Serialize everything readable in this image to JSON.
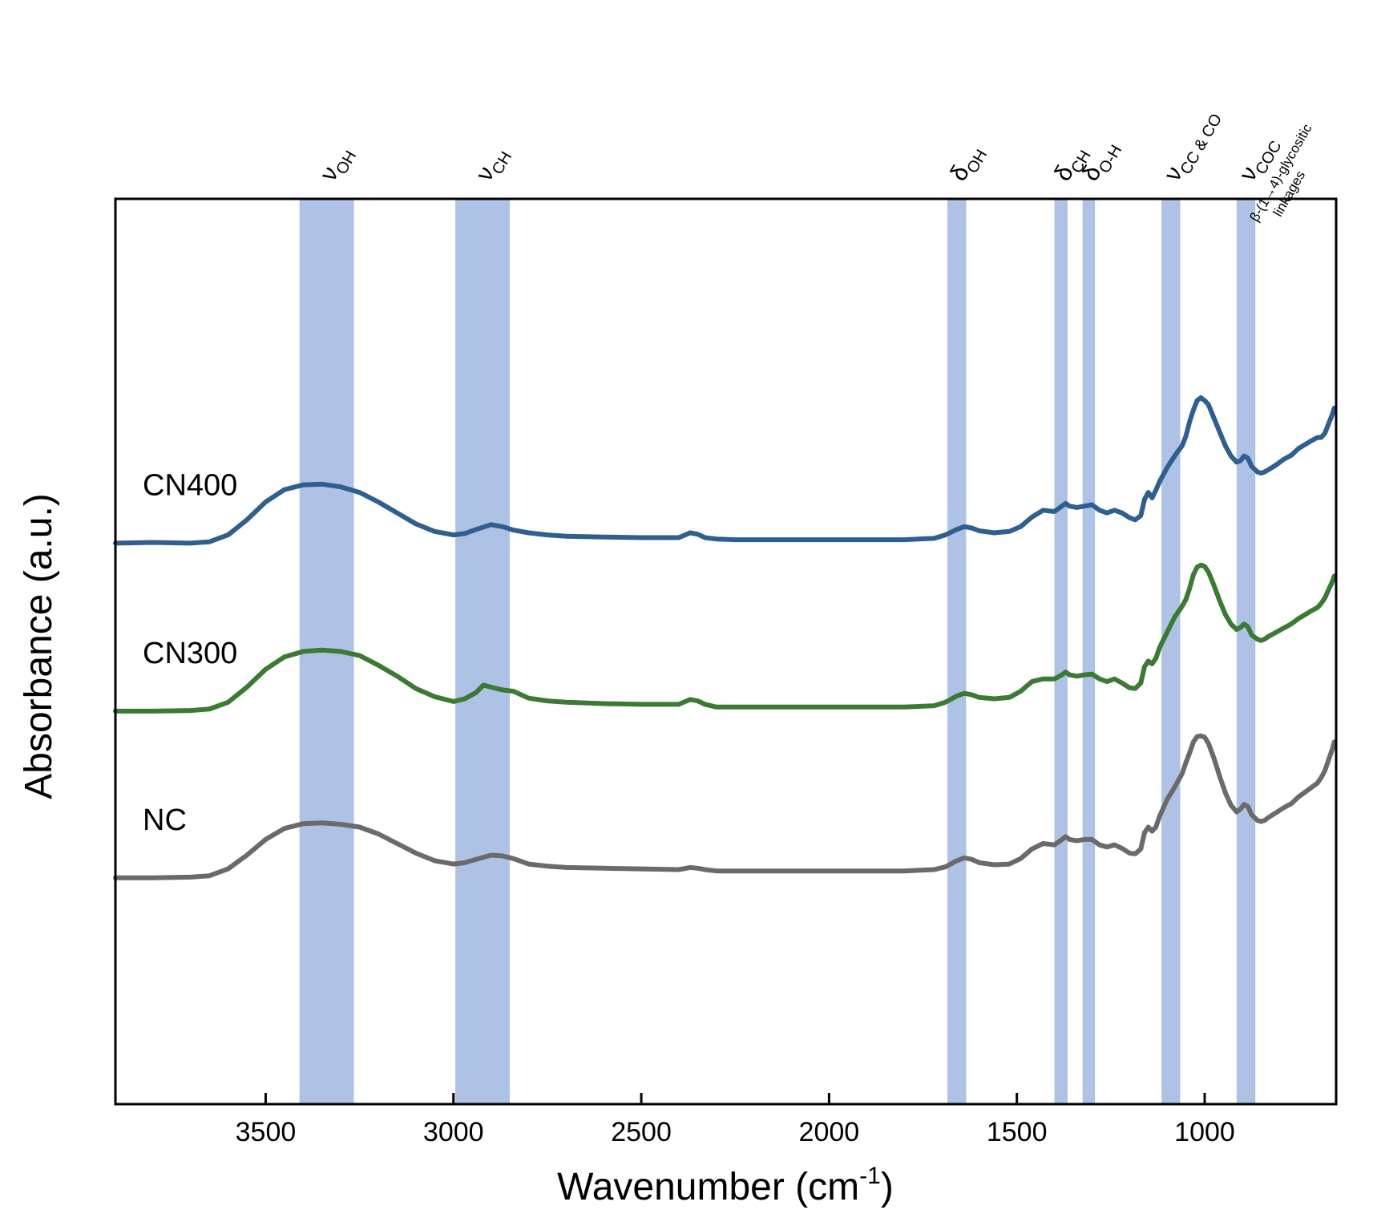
{
  "chart_data": {
    "type": "line",
    "title": "",
    "xlabel": "Wavenumber (cm",
    "xlabel_sup": "-1",
    "xlabel_close": ")",
    "ylabel": "Absorbance (a.u.)",
    "xlim": [
      3900,
      650
    ],
    "ylim": [
      -1.0,
      12.2
    ],
    "x_reversed": true,
    "xticks": [
      3500,
      3000,
      2500,
      2000,
      1500,
      1000
    ],
    "xtick_labels": [
      "3500",
      "3000",
      "2500",
      "2000",
      "1500",
      "1000"
    ],
    "grid": false,
    "legend": "inline-left",
    "bands": [
      {
        "id": "oh-stretch",
        "from": 3410,
        "to": 3265,
        "sym": "ν",
        "sub": "OH",
        "color": "#aec2e6"
      },
      {
        "id": "ch-stretch",
        "from": 2995,
        "to": 2850,
        "sym": "ν",
        "sub": "CH",
        "color": "#aec2e6"
      },
      {
        "id": "oh-bend",
        "from": 1685,
        "to": 1635,
        "sym": "δ",
        "sub": "OH",
        "color": "#aec2e6"
      },
      {
        "id": "ch-bend",
        "from": 1400,
        "to": 1365,
        "sym": "δ",
        "sub": "CH",
        "color": "#aec2e6"
      },
      {
        "id": "oh-bend-2",
        "from": 1325,
        "to": 1292,
        "sym": "δ",
        "sub": "O-H",
        "color": "#aec2e6"
      },
      {
        "id": "cc-co-stretch",
        "from": 1115,
        "to": 1065,
        "sym": "ν",
        "sub": "CC & CO",
        "color": "#aec2e6"
      },
      {
        "id": "coc-stretch",
        "from": 915,
        "to": 865,
        "sym": "ν",
        "sub": "COC",
        "extra1": "β-(1→4)-glycositic",
        "extra2": "linkages",
        "color": "#aec2e6"
      }
    ],
    "series": [
      {
        "name": "CN400",
        "color": "#2f5f8f",
        "x": [
          3900,
          3800,
          3700,
          3650,
          3600,
          3550,
          3500,
          3450,
          3400,
          3350,
          3300,
          3250,
          3200,
          3150,
          3100,
          3050,
          3000,
          2970,
          2940,
          2900,
          2870,
          2840,
          2800,
          2750,
          2700,
          2600,
          2500,
          2400,
          2370,
          2350,
          2330,
          2300,
          2250,
          2200,
          2100,
          2000,
          1900,
          1800,
          1720,
          1690,
          1660,
          1640,
          1620,
          1600,
          1560,
          1520,
          1490,
          1460,
          1430,
          1400,
          1380,
          1370,
          1360,
          1340,
          1320,
          1300,
          1280,
          1260,
          1240,
          1220,
          1200,
          1185,
          1170,
          1160,
          1150,
          1140,
          1130,
          1120,
          1100,
          1080,
          1060,
          1050,
          1040,
          1030,
          1020,
          1010,
          1000,
          990,
          975,
          960,
          945,
          930,
          915,
          905,
          895,
          885,
          875,
          860,
          850,
          840,
          830,
          810,
          790,
          770,
          750,
          720,
          700,
          690,
          680,
          670,
          660,
          655
        ],
        "y": [
          7.18,
          7.19,
          7.18,
          7.2,
          7.3,
          7.52,
          7.78,
          7.96,
          8.03,
          8.04,
          8.0,
          7.92,
          7.78,
          7.62,
          7.46,
          7.35,
          7.3,
          7.32,
          7.38,
          7.45,
          7.42,
          7.37,
          7.33,
          7.3,
          7.28,
          7.27,
          7.26,
          7.26,
          7.33,
          7.31,
          7.26,
          7.24,
          7.23,
          7.23,
          7.23,
          7.23,
          7.23,
          7.23,
          7.25,
          7.3,
          7.38,
          7.42,
          7.4,
          7.36,
          7.33,
          7.35,
          7.42,
          7.56,
          7.66,
          7.64,
          7.72,
          7.76,
          7.72,
          7.7,
          7.72,
          7.74,
          7.66,
          7.62,
          7.66,
          7.62,
          7.55,
          7.52,
          7.58,
          7.82,
          7.92,
          7.84,
          7.95,
          8.08,
          8.28,
          8.45,
          8.6,
          8.74,
          8.95,
          9.12,
          9.26,
          9.3,
          9.26,
          9.2,
          9.0,
          8.8,
          8.6,
          8.45,
          8.36,
          8.38,
          8.45,
          8.42,
          8.3,
          8.22,
          8.2,
          8.22,
          8.25,
          8.32,
          8.4,
          8.46,
          8.56,
          8.66,
          8.72,
          8.72,
          8.78,
          8.92,
          9.06,
          9.15
        ]
      },
      {
        "name": "CN300",
        "color": "#3b7a33",
        "x": [
          3900,
          3800,
          3700,
          3650,
          3600,
          3550,
          3500,
          3450,
          3400,
          3350,
          3300,
          3250,
          3200,
          3150,
          3100,
          3050,
          3000,
          2970,
          2940,
          2920,
          2900,
          2870,
          2840,
          2800,
          2750,
          2700,
          2600,
          2500,
          2400,
          2370,
          2350,
          2330,
          2300,
          2250,
          2200,
          2100,
          2000,
          1900,
          1800,
          1720,
          1690,
          1660,
          1640,
          1620,
          1600,
          1560,
          1520,
          1490,
          1460,
          1430,
          1400,
          1380,
          1370,
          1360,
          1340,
          1320,
          1300,
          1280,
          1260,
          1240,
          1220,
          1200,
          1185,
          1170,
          1160,
          1150,
          1140,
          1130,
          1120,
          1100,
          1080,
          1060,
          1050,
          1040,
          1030,
          1020,
          1010,
          1000,
          990,
          975,
          960,
          945,
          930,
          915,
          905,
          895,
          885,
          875,
          860,
          850,
          840,
          830,
          810,
          790,
          770,
          750,
          720,
          700,
          690,
          680,
          670,
          660,
          655
        ],
        "y": [
          4.73,
          4.73,
          4.74,
          4.76,
          4.86,
          5.08,
          5.34,
          5.52,
          5.6,
          5.62,
          5.6,
          5.54,
          5.4,
          5.24,
          5.06,
          4.94,
          4.87,
          4.91,
          5.0,
          5.11,
          5.08,
          5.04,
          5.02,
          4.92,
          4.88,
          4.86,
          4.84,
          4.83,
          4.83,
          4.9,
          4.88,
          4.83,
          4.79,
          4.79,
          4.79,
          4.79,
          4.79,
          4.79,
          4.79,
          4.81,
          4.86,
          4.95,
          4.99,
          4.97,
          4.93,
          4.91,
          4.93,
          5.02,
          5.16,
          5.2,
          5.2,
          5.26,
          5.3,
          5.26,
          5.24,
          5.26,
          5.27,
          5.2,
          5.16,
          5.2,
          5.14,
          5.07,
          5.06,
          5.14,
          5.38,
          5.46,
          5.42,
          5.5,
          5.66,
          5.88,
          6.1,
          6.26,
          6.36,
          6.52,
          6.72,
          6.83,
          6.86,
          6.84,
          6.76,
          6.56,
          6.34,
          6.14,
          6.0,
          5.92,
          5.95,
          6.0,
          5.96,
          5.84,
          5.78,
          5.76,
          5.78,
          5.82,
          5.88,
          5.94,
          6.0,
          6.08,
          6.18,
          6.24,
          6.3,
          6.38,
          6.5,
          6.62,
          6.7
        ]
      },
      {
        "name": "NC",
        "color": "#6a6a6a",
        "x": [
          3900,
          3800,
          3700,
          3650,
          3600,
          3550,
          3500,
          3450,
          3400,
          3350,
          3300,
          3250,
          3200,
          3150,
          3100,
          3050,
          3000,
          2970,
          2940,
          2900,
          2870,
          2840,
          2800,
          2750,
          2700,
          2600,
          2500,
          2400,
          2370,
          2350,
          2330,
          2300,
          2250,
          2200,
          2100,
          2000,
          1900,
          1800,
          1720,
          1690,
          1660,
          1640,
          1620,
          1600,
          1560,
          1520,
          1490,
          1460,
          1430,
          1400,
          1380,
          1370,
          1360,
          1340,
          1320,
          1300,
          1280,
          1260,
          1240,
          1220,
          1200,
          1185,
          1170,
          1160,
          1150,
          1140,
          1130,
          1120,
          1100,
          1080,
          1060,
          1050,
          1040,
          1030,
          1020,
          1010,
          1000,
          990,
          975,
          960,
          945,
          930,
          915,
          905,
          895,
          885,
          875,
          860,
          850,
          840,
          830,
          810,
          790,
          770,
          750,
          720,
          700,
          690,
          680,
          670,
          660,
          655
        ],
        "y": [
          2.3,
          2.3,
          2.31,
          2.33,
          2.43,
          2.63,
          2.86,
          3.02,
          3.09,
          3.1,
          3.08,
          3.04,
          2.94,
          2.8,
          2.66,
          2.55,
          2.5,
          2.52,
          2.57,
          2.63,
          2.62,
          2.58,
          2.5,
          2.47,
          2.45,
          2.44,
          2.43,
          2.42,
          2.45,
          2.44,
          2.42,
          2.4,
          2.4,
          2.4,
          2.4,
          2.4,
          2.4,
          2.4,
          2.42,
          2.46,
          2.55,
          2.59,
          2.57,
          2.52,
          2.49,
          2.5,
          2.58,
          2.72,
          2.8,
          2.78,
          2.86,
          2.9,
          2.86,
          2.84,
          2.86,
          2.86,
          2.78,
          2.75,
          2.78,
          2.73,
          2.66,
          2.65,
          2.72,
          2.96,
          3.04,
          2.98,
          3.04,
          3.2,
          3.44,
          3.62,
          3.82,
          3.98,
          4.12,
          4.28,
          4.36,
          4.37,
          4.35,
          4.26,
          4.04,
          3.78,
          3.54,
          3.36,
          3.26,
          3.3,
          3.37,
          3.34,
          3.22,
          3.14,
          3.12,
          3.14,
          3.18,
          3.25,
          3.32,
          3.38,
          3.48,
          3.6,
          3.68,
          3.76,
          3.86,
          4.02,
          4.18,
          4.28
        ]
      }
    ]
  }
}
